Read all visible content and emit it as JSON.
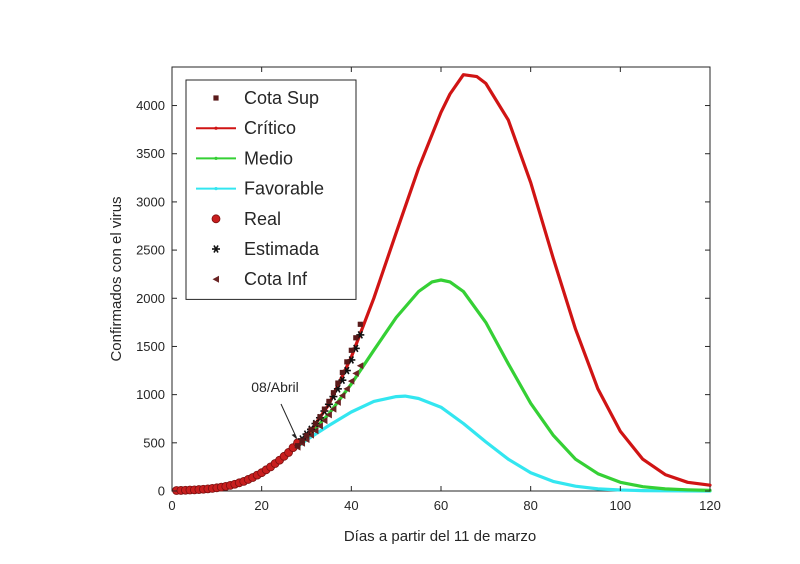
{
  "chart_data": {
    "type": "line",
    "xlabel": "Días a partir del 11 de marzo",
    "ylabel": "Confirmados con el virus",
    "xlim": [
      0,
      120
    ],
    "ylim": [
      0,
      4400
    ],
    "xticks": [
      "0",
      "20",
      "40",
      "60",
      "80",
      "100",
      "120"
    ],
    "yticks": [
      "0",
      "500",
      "1000",
      "1500",
      "2000",
      "2500",
      "3000",
      "3500",
      "4000"
    ],
    "grid": false,
    "legend_position": "top-left",
    "annotation": {
      "text": "08/Abril",
      "x": 28,
      "y": 520
    },
    "colors": {
      "cota_sup": "#5a1a1a",
      "critico": "#d01414",
      "medio": "#35d035",
      "favorable": "#33e6f0",
      "real": "#c81e1e",
      "estimada": "#111111",
      "cota_inf": "#6a2424"
    },
    "series": [
      {
        "name": "Cota Sup",
        "marker": "square",
        "x": [
          28,
          29,
          30,
          31,
          32,
          33,
          34,
          35,
          36,
          37,
          38,
          39,
          40,
          41,
          42
        ],
        "values": [
          470,
          520,
          575,
          635,
          700,
          770,
          850,
          930,
          1020,
          1120,
          1230,
          1340,
          1460,
          1590,
          1730
        ]
      },
      {
        "name": "Crítico",
        "marker": "line",
        "x": [
          28,
          30,
          35,
          40,
          45,
          50,
          55,
          60,
          62,
          65,
          68,
          70,
          75,
          80,
          85,
          90,
          95,
          100,
          105,
          110,
          115,
          120
        ],
        "values": [
          460,
          560,
          900,
          1390,
          2000,
          2680,
          3350,
          3930,
          4120,
          4320,
          4300,
          4230,
          3850,
          3200,
          2420,
          1680,
          1060,
          620,
          330,
          170,
          90,
          60
        ]
      },
      {
        "name": "Medio",
        "marker": "line",
        "x": [
          28,
          30,
          35,
          40,
          45,
          50,
          55,
          58,
          60,
          62,
          65,
          70,
          75,
          80,
          85,
          90,
          95,
          100,
          105,
          110,
          115,
          120
        ],
        "values": [
          460,
          550,
          800,
          1110,
          1460,
          1800,
          2070,
          2170,
          2190,
          2170,
          2070,
          1750,
          1320,
          910,
          580,
          330,
          180,
          90,
          45,
          22,
          12,
          6
        ]
      },
      {
        "name": "Favorable",
        "marker": "line",
        "x": [
          28,
          30,
          35,
          40,
          45,
          50,
          52,
          55,
          60,
          65,
          70,
          75,
          80,
          85,
          90,
          95,
          100,
          105,
          110,
          115,
          120
        ],
        "values": [
          460,
          530,
          680,
          820,
          930,
          980,
          985,
          960,
          870,
          700,
          510,
          330,
          190,
          100,
          50,
          22,
          10,
          4,
          2,
          1,
          0
        ]
      },
      {
        "name": "Real",
        "marker": "circle",
        "x": [
          1,
          2,
          3,
          4,
          5,
          6,
          7,
          8,
          9,
          10,
          11,
          12,
          13,
          14,
          15,
          16,
          17,
          18,
          19,
          20,
          21,
          22,
          23,
          24,
          25,
          26,
          27,
          28
        ],
        "values": [
          5,
          6,
          8,
          10,
          12,
          15,
          18,
          22,
          27,
          33,
          40,
          48,
          58,
          70,
          85,
          100,
          120,
          140,
          165,
          190,
          220,
          250,
          285,
          320,
          360,
          400,
          450,
          500
        ]
      },
      {
        "name": "Estimada",
        "marker": "asterisk",
        "x": [
          29,
          30,
          31,
          32,
          33,
          34,
          35,
          36,
          37,
          38,
          39,
          40,
          41,
          42
        ],
        "values": [
          540,
          590,
          640,
          700,
          760,
          830,
          900,
          980,
          1060,
          1150,
          1250,
          1360,
          1480,
          1620
        ]
      },
      {
        "name": "Cota Inf",
        "marker": "triangle-left",
        "x": [
          28,
          29,
          30,
          31,
          32,
          33,
          34,
          35,
          36,
          37,
          38,
          39,
          40,
          41,
          42
        ],
        "values": [
          455,
          495,
          535,
          580,
          625,
          675,
          730,
          790,
          850,
          920,
          990,
          1060,
          1140,
          1220,
          1300
        ]
      }
    ]
  }
}
